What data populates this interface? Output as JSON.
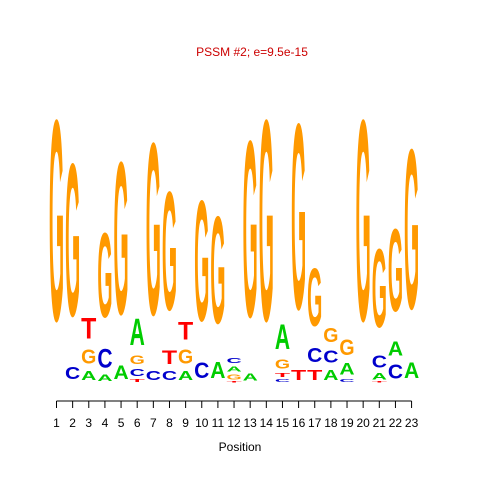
{
  "chart_data": {
    "type": "sequence-logo",
    "title": "PSSM #2; e=9.5e-15",
    "xlabel": "Position",
    "ylabel": "",
    "x_ticks": [
      "1",
      "2",
      "3",
      "4",
      "5",
      "6",
      "7",
      "8",
      "9",
      "10",
      "11",
      "12",
      "13",
      "14",
      "15",
      "16",
      "17",
      "18",
      "19",
      "20",
      "21",
      "22",
      "23"
    ],
    "ylim": [
      0,
      2
    ],
    "colors": {
      "A": "#00cc00",
      "C": "#0000cc",
      "G": "#ff9900",
      "T": "#ff0000",
      "title": "#cc0000"
    },
    "positions": [
      {
        "pos": 1,
        "letters": [
          {
            "base": "G",
            "height": 1.95
          }
        ]
      },
      {
        "pos": 2,
        "letters": [
          {
            "base": "C",
            "height": 0.12
          },
          {
            "base": "G",
            "height": 1.48
          }
        ]
      },
      {
        "pos": 3,
        "letters": [
          {
            "base": "A",
            "height": 0.09
          },
          {
            "base": "G",
            "height": 0.14
          },
          {
            "base": "T",
            "height": 0.2
          }
        ]
      },
      {
        "pos": 4,
        "letters": [
          {
            "base": "A",
            "height": 0.06
          },
          {
            "base": "C",
            "height": 0.18
          },
          {
            "base": "G",
            "height": 0.82
          }
        ]
      },
      {
        "pos": 5,
        "letters": [
          {
            "base": "A",
            "height": 0.13
          },
          {
            "base": "G",
            "height": 1.48
          }
        ]
      },
      {
        "pos": 6,
        "letters": [
          {
            "base": "T",
            "height": 0.03
          },
          {
            "base": "C",
            "height": 0.07
          },
          {
            "base": "G",
            "height": 0.08
          },
          {
            "base": "A",
            "height": 0.26
          }
        ]
      },
      {
        "pos": 7,
        "letters": [
          {
            "base": "C",
            "height": 0.09
          },
          {
            "base": "G",
            "height": 1.67
          }
        ]
      },
      {
        "pos": 8,
        "letters": [
          {
            "base": "C",
            "height": 0.09
          },
          {
            "base": "T",
            "height": 0.13
          },
          {
            "base": "G",
            "height": 1.15
          }
        ]
      },
      {
        "pos": 9,
        "letters": [
          {
            "base": "A",
            "height": 0.09
          },
          {
            "base": "G",
            "height": 0.14
          },
          {
            "base": "T",
            "height": 0.17
          }
        ]
      },
      {
        "pos": 10,
        "letters": [
          {
            "base": "C",
            "height": 0.15
          },
          {
            "base": "G",
            "height": 1.17
          }
        ]
      },
      {
        "pos": 11,
        "letters": [
          {
            "base": "A",
            "height": 0.16
          },
          {
            "base": "G",
            "height": 1.04
          }
        ]
      },
      {
        "pos": 12,
        "letters": [
          {
            "base": "T",
            "height": 0.01
          },
          {
            "base": "G",
            "height": 0.05
          },
          {
            "base": "A",
            "height": 0.05
          },
          {
            "base": "C",
            "height": 0.05
          }
        ]
      },
      {
        "pos": 13,
        "letters": [
          {
            "base": "A",
            "height": 0.07
          },
          {
            "base": "G",
            "height": 1.71
          }
        ]
      },
      {
        "pos": 14,
        "letters": [
          {
            "base": "G",
            "height": 1.95
          }
        ]
      },
      {
        "pos": 15,
        "letters": [
          {
            "base": "C",
            "height": 0.03
          },
          {
            "base": "T",
            "height": 0.04
          },
          {
            "base": "G",
            "height": 0.09
          },
          {
            "base": "A",
            "height": 0.24
          }
        ]
      },
      {
        "pos": 16,
        "letters": [
          {
            "base": "T",
            "height": 0.1
          },
          {
            "base": "G",
            "height": 1.8
          }
        ]
      },
      {
        "pos": 17,
        "letters": [
          {
            "base": "T",
            "height": 0.1
          },
          {
            "base": "C",
            "height": 0.14
          },
          {
            "base": "G",
            "height": 0.56
          }
        ]
      },
      {
        "pos": 18,
        "letters": [
          {
            "base": "A",
            "height": 0.1
          },
          {
            "base": "C",
            "height": 0.12
          },
          {
            "base": "G",
            "height": 0.14
          }
        ]
      },
      {
        "pos": 19,
        "letters": [
          {
            "base": "C",
            "height": 0.03
          },
          {
            "base": "A",
            "height": 0.11
          },
          {
            "base": "G",
            "height": 0.15
          }
        ]
      },
      {
        "pos": 20,
        "letters": [
          {
            "base": "G",
            "height": 1.95
          }
        ]
      },
      {
        "pos": 21,
        "letters": [
          {
            "base": "T",
            "height": 0.01
          },
          {
            "base": "A",
            "height": 0.06
          },
          {
            "base": "C",
            "height": 0.12
          },
          {
            "base": "G",
            "height": 0.76
          }
        ]
      },
      {
        "pos": 22,
        "letters": [
          {
            "base": "C",
            "height": 0.14
          },
          {
            "base": "A",
            "height": 0.14
          },
          {
            "base": "G",
            "height": 0.8
          }
        ]
      },
      {
        "pos": 23,
        "letters": [
          {
            "base": "A",
            "height": 0.15
          },
          {
            "base": "G",
            "height": 1.55
          }
        ]
      }
    ]
  }
}
